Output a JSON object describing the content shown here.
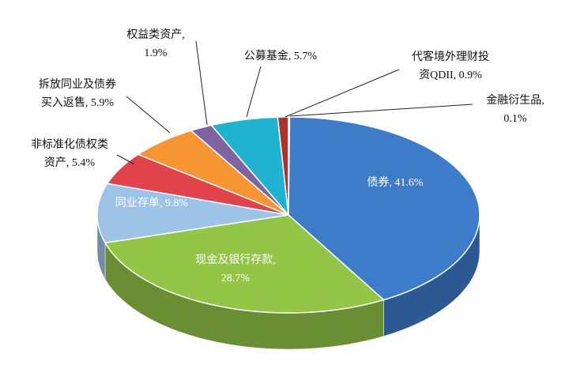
{
  "chart_data": {
    "type": "pie3d",
    "categories": [
      "金融衍生品",
      "债券",
      "现金及银行存款",
      "同业存单",
      "非标准化债权类资产",
      "拆放同业及债券买入返售",
      "权益类资产",
      "公募基金",
      "代客境外理财投资QDII"
    ],
    "values": [
      0.1,
      41.6,
      28.7,
      9.8,
      5.4,
      5.9,
      1.9,
      5.7,
      0.9
    ],
    "labels": [
      [
        "金融衍生品,",
        "0.1%"
      ],
      [
        "债券, 41.6%"
      ],
      [
        "现金及银行存款,",
        "28.7%"
      ],
      [
        "同业存单, 9.8%"
      ],
      [
        "非标准化债权类",
        "资产, 5.4%"
      ],
      [
        "拆放同业及债券",
        "买入返售, 5.9%"
      ],
      [
        "权益类资产,",
        "1.9%"
      ],
      [
        "公募基金, 5.7%"
      ],
      [
        "代客境外理财投",
        "资QDII, 0.9%"
      ]
    ],
    "colors": [
      "#e9e4dc",
      "#3d7cc9",
      "#93c547",
      "#9dc3e6",
      "#e0434a",
      "#f79533",
      "#8064a2",
      "#1fb3d1",
      "#b0302c"
    ]
  }
}
